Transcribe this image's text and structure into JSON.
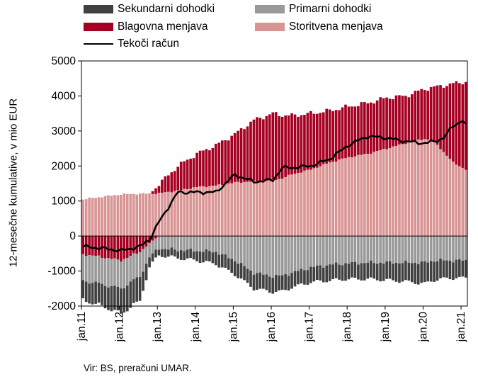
{
  "chart_data": {
    "type": "bar",
    "stacked": true,
    "ylabel": "12-mesečne kumulative, v mio EUR",
    "xlabel": "",
    "ylim": [
      -2000,
      5000
    ],
    "yticks": [
      5000,
      4000,
      3000,
      2000,
      1000,
      0,
      -1000,
      -2000
    ],
    "xtick_labels": [
      "jan.11",
      "jan.12",
      "jan.13",
      "jan.14",
      "jan.15",
      "jan.16",
      "jan.17",
      "jan.18",
      "jan.19",
      "jan.20",
      "jan.21"
    ],
    "grid": false,
    "legend_position": "top",
    "source": "Vir: BS, preračuni UMAR.",
    "series_order": [
      "Sekundarni dohodki",
      "Primarni dohodki",
      "Blagovna menjava",
      "Storitvena menjava",
      "Tekoči račun"
    ],
    "anchor_points": {
      "months": [
        0,
        6,
        12,
        18,
        21,
        24,
        30,
        36,
        42,
        48,
        54,
        60,
        63,
        66,
        72,
        78,
        84,
        90,
        96,
        102,
        108,
        111,
        114,
        117,
        120,
        121
      ],
      "Storitvena menjava": [
        1050,
        1120,
        1190,
        1210,
        1210,
        1220,
        1300,
        1400,
        1440,
        1530,
        1560,
        1600,
        1650,
        1760,
        1900,
        2100,
        2250,
        2350,
        2500,
        2650,
        2780,
        2700,
        2400,
        2100,
        1950,
        1900
      ],
      "Blagovna menjava": [
        0,
        0,
        0,
        0,
        0,
        260,
        700,
        950,
        1150,
        1380,
        1750,
        1900,
        1800,
        1680,
        1600,
        1480,
        1450,
        1450,
        1450,
        1350,
        1420,
        1550,
        1900,
        2250,
        2450,
        2500
      ],
      "Primarni dohodki": [
        -750,
        -780,
        -800,
        -700,
        -400,
        -350,
        -400,
        -420,
        -450,
        -700,
        -1050,
        -1150,
        -1130,
        -1050,
        -900,
        -820,
        -780,
        -760,
        -760,
        -760,
        -760,
        -700,
        -700,
        -700,
        -700,
        -700
      ],
      "Sekundarni dohodki": [
        -560,
        -620,
        -720,
        -700,
        -280,
        -200,
        -230,
        -280,
        -350,
        -400,
        -450,
        -450,
        -450,
        -420,
        -420,
        -450,
        -450,
        -470,
        -500,
        -540,
        -600,
        -560,
        -520,
        -500,
        -500,
        -500
      ],
      "Blagovna menjava (negative)": [
        -520,
        -600,
        -700,
        -450,
        -200,
        0,
        0,
        0,
        0,
        0,
        0,
        0,
        0,
        0,
        0,
        0,
        0,
        0,
        0,
        0,
        0,
        0,
        0,
        0,
        0,
        0
      ],
      "Tekoči račun": [
        -300,
        -350,
        -420,
        -300,
        -100,
        400,
        1250,
        1250,
        1250,
        1750,
        1550,
        1600,
        1950,
        1950,
        2000,
        2200,
        2600,
        2850,
        2800,
        2700,
        2650,
        2700,
        2800,
        3150,
        3300,
        3150
      ]
    },
    "series": [
      {
        "name": "Sekundarni dohodki",
        "color": "#404040"
      },
      {
        "name": "Primarni dohodki",
        "color": "#999999"
      },
      {
        "name": "Blagovna menjava",
        "color": "#a50021"
      },
      {
        "name": "Storitvena menjava",
        "color": "#d99494"
      },
      {
        "name": "Tekoči račun",
        "color": "#000000"
      }
    ]
  }
}
